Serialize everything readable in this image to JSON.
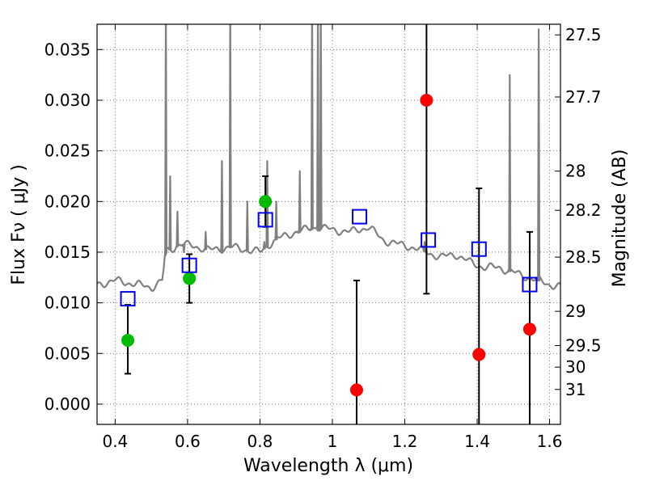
{
  "chart_data": {
    "type": "scatter",
    "xlabel": "Wavelength  λ (μm)",
    "ylabel": "Flux  Fν  ( μJy )",
    "ylabel_right": "Magnitude (AB)",
    "xlim": [
      0.35,
      1.63
    ],
    "ylim": [
      -0.002,
      0.0375
    ],
    "x_ticks": [
      0.4,
      0.6,
      0.8,
      1.0,
      1.2,
      1.4,
      1.6
    ],
    "x_tick_labels": [
      "0.4",
      "0.6",
      "0.8",
      "1",
      "1.2",
      "1.4",
      "1.6"
    ],
    "y_ticks": [
      0.0,
      0.005,
      0.01,
      0.015,
      0.02,
      0.025,
      0.03,
      0.035
    ],
    "y_tick_labels": [
      "0.000",
      "0.005",
      "0.010",
      "0.015",
      "0.020",
      "0.025",
      "0.030",
      "0.035"
    ],
    "right_ticks": [
      {
        "label": "27.5",
        "flux": 0.03645
      },
      {
        "label": "27.7",
        "flux": 0.03032
      },
      {
        "label": "28",
        "flux": 0.023
      },
      {
        "label": "28.2",
        "flux": 0.01913
      },
      {
        "label": "28.5",
        "flux": 0.01451
      },
      {
        "label": "29",
        "flux": 0.00916
      },
      {
        "label": "29.5",
        "flux": 0.00578
      },
      {
        "label": "30",
        "flux": 0.00365
      },
      {
        "label": "31",
        "flux": 0.00145
      }
    ],
    "grid": true,
    "colors": {
      "spectrum": "#808080",
      "green_points": "#00bb00",
      "red_points": "#ff0000",
      "model_squares": "#0000ee",
      "errorbars": "#000000",
      "grid": "#555555"
    },
    "spectrum": {
      "continuum": [
        [
          0.35,
          0.0118
        ],
        [
          0.4,
          0.0122
        ],
        [
          0.45,
          0.0119
        ],
        [
          0.5,
          0.0115
        ],
        [
          0.53,
          0.0122
        ],
        [
          0.54,
          0.015
        ],
        [
          0.58,
          0.0158
        ],
        [
          0.62,
          0.0156
        ],
        [
          0.66,
          0.0152
        ],
        [
          0.72,
          0.0155
        ],
        [
          0.8,
          0.015
        ],
        [
          0.84,
          0.0162
        ],
        [
          0.9,
          0.017
        ],
        [
          0.96,
          0.0175
        ],
        [
          1.0,
          0.0172
        ],
        [
          1.05,
          0.017
        ],
        [
          1.1,
          0.0175
        ],
        [
          1.14,
          0.0162
        ],
        [
          1.18,
          0.0158
        ],
        [
          1.22,
          0.0155
        ],
        [
          1.26,
          0.015
        ],
        [
          1.3,
          0.0145
        ],
        [
          1.34,
          0.0148
        ],
        [
          1.38,
          0.014
        ],
        [
          1.42,
          0.0135
        ],
        [
          1.46,
          0.0135
        ],
        [
          1.5,
          0.013
        ],
        [
          1.54,
          0.0125
        ],
        [
          1.57,
          0.0122
        ],
        [
          1.6,
          0.0118
        ],
        [
          1.63,
          0.0116
        ]
      ],
      "lines": [
        [
          0.54,
          0.04
        ],
        [
          0.552,
          0.0225
        ],
        [
          0.572,
          0.019
        ],
        [
          0.59,
          0.015
        ],
        [
          0.65,
          0.017
        ],
        [
          0.695,
          0.024
        ],
        [
          0.718,
          0.04
        ],
        [
          0.765,
          0.02
        ],
        [
          0.812,
          0.016
        ],
        [
          0.82,
          0.024
        ],
        [
          0.845,
          0.02
        ],
        [
          0.9,
          0.017
        ],
        [
          0.91,
          0.023
        ],
        [
          0.944,
          0.04
        ],
        [
          0.96,
          0.04
        ],
        [
          0.968,
          0.04
        ],
        [
          1.255,
          0.016
        ],
        [
          1.49,
          0.0325
        ],
        [
          1.57,
          0.037
        ]
      ]
    },
    "series": [
      {
        "marker": "circle",
        "color": "green",
        "points": [
          {
            "x": 0.435,
            "y": 0.0063,
            "lo": 0.003,
            "hi": 0.0098
          },
          {
            "x": 0.605,
            "y": 0.0124,
            "lo": 0.01,
            "hi": 0.0148
          },
          {
            "x": 0.815,
            "y": 0.02,
            "lo": 0.0175,
            "hi": 0.0225
          }
        ]
      },
      {
        "marker": "circle",
        "color": "red",
        "points": [
          {
            "x": 1.067,
            "y": 0.0014,
            "lo": -0.003,
            "hi": 0.0122
          },
          {
            "x": 1.26,
            "y": 0.03,
            "lo": 0.0109,
            "hi": 0.05
          },
          {
            "x": 1.405,
            "y": 0.0049,
            "lo": -0.003,
            "hi": 0.0213
          },
          {
            "x": 1.545,
            "y": 0.0074,
            "lo": -0.003,
            "hi": 0.017
          }
        ]
      },
      {
        "marker": "square",
        "color": "blue",
        "points": [
          {
            "x": 0.435,
            "y": 0.0104
          },
          {
            "x": 0.605,
            "y": 0.0137
          },
          {
            "x": 0.815,
            "y": 0.0182
          },
          {
            "x": 1.075,
            "y": 0.0185
          },
          {
            "x": 1.265,
            "y": 0.0162
          },
          {
            "x": 1.405,
            "y": 0.0153
          },
          {
            "x": 1.545,
            "y": 0.0118
          }
        ]
      }
    ]
  }
}
